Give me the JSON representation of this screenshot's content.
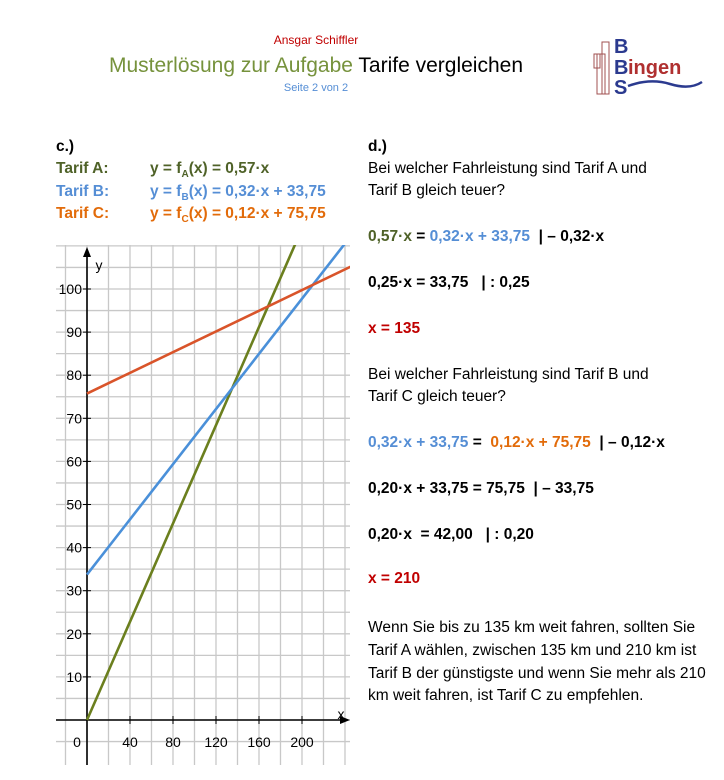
{
  "header": {
    "author": "Ansgar Schiffler",
    "title_part1": "Musterlösung zur Aufgabe",
    "title_part2": "Tarife vergleichen",
    "page": "Seite 2 von 2",
    "logo_text": [
      "B",
      "Bingen",
      "S"
    ]
  },
  "colors": {
    "tarif_a": "#6b7f1e",
    "tarif_b": "#4a90d9",
    "tarif_c": "#d9542a"
  },
  "c": {
    "heading": "c.)",
    "tarifs": [
      {
        "label": "Tarif A:",
        "formula": "y = f",
        "sub": "A",
        "rest": "(x) = 0,57·x"
      },
      {
        "label": "Tarif B:",
        "formula": "y = f",
        "sub": "B",
        "rest": "(x) = 0,32·x + 33,75"
      },
      {
        "label": "Tarif C:",
        "formula": "y = f",
        "sub": "C",
        "rest": "(x) = 0,12·x + 75,75"
      }
    ]
  },
  "chart_data": {
    "type": "line",
    "xlabel": "x",
    "ylabel": "y",
    "xlim": [
      -30,
      245
    ],
    "ylim": [
      -10,
      110
    ],
    "grid": true,
    "xticks": [
      0,
      40,
      80,
      120,
      160,
      200
    ],
    "yticks": [
      10,
      20,
      30,
      40,
      50,
      60,
      70,
      80,
      90,
      100
    ],
    "series": [
      {
        "name": "Tarif A",
        "slope": 0.57,
        "intercept": 0
      },
      {
        "name": "Tarif B",
        "slope": 0.32,
        "intercept": 33.75
      },
      {
        "name": "Tarif C",
        "slope": 0.12,
        "intercept": 75.75
      }
    ]
  },
  "d": {
    "heading": "d.)",
    "q1": [
      "Bei welcher Fahrleistung sind Tarif A und",
      "Tarif B gleich teuer?"
    ],
    "steps1": [
      [
        {
          "t": "0,57·x",
          "c": "green"
        },
        {
          "t": " = ",
          "c": "black"
        },
        {
          "t": "0,32·x + 33,75",
          "c": "blue"
        },
        {
          "t": "  | – 0,32·x",
          "c": "black"
        }
      ],
      [
        {
          "t": "0,25·x = 33,75   | : 0,25",
          "c": "black"
        }
      ],
      [
        {
          "t": "x = 135",
          "c": "red"
        }
      ]
    ],
    "q2": [
      "Bei welcher Fahrleistung sind Tarif B und",
      "Tarif C gleich teuer?"
    ],
    "steps2": [
      [
        {
          "t": "0,32·x + 33,75",
          "c": "blue"
        },
        {
          "t": " =  ",
          "c": "black"
        },
        {
          "t": "0,12·x + 75,75",
          "c": "orange"
        },
        {
          "t": "  | – 0,12·x",
          "c": "black"
        }
      ],
      [
        {
          "t": "0,20·x + 33,75 = 75,75  | – 33,75",
          "c": "black"
        }
      ],
      [
        {
          "t": "0,20·x  = 42,00   | : 0,20",
          "c": "black"
        }
      ],
      [
        {
          "t": "x = 210",
          "c": "red"
        }
      ]
    ],
    "conclusion": "Wenn Sie bis zu 135 km weit fahren, sollten Sie Tarif A wählen, zwischen 135 km und 210 km ist Tarif B der günstigste und wenn Sie mehr als 210 km weit fahren, ist Tarif C zu empfehlen."
  }
}
